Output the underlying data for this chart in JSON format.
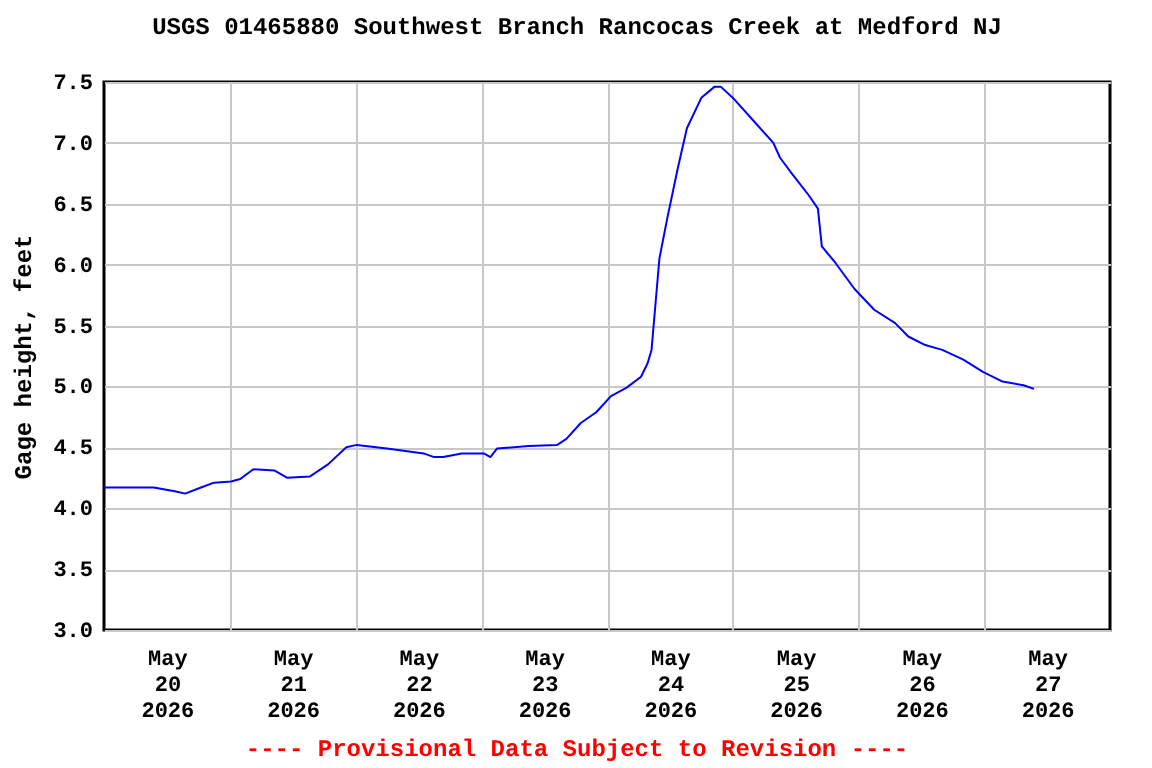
{
  "chart_data": {
    "type": "line",
    "title": "USGS 01465880 Southwest Branch Rancocas Creek at Medford NJ",
    "ylabel": "Gage height, feet",
    "annotations": [
      "---- Provisional Data Subject to Revision ----"
    ],
    "xlim": [
      "2026-05-20T00:00",
      "2026-05-28T00:00"
    ],
    "xticks": [
      {
        "value": "2026-05-20T12:00",
        "label": "May\n20\n2026"
      },
      {
        "value": "2026-05-21T00:00",
        "label": null
      },
      {
        "value": "2026-05-21T12:00",
        "label": "May\n21\n2026"
      },
      {
        "value": "2026-05-22T00:00",
        "label": null
      },
      {
        "value": "2026-05-22T12:00",
        "label": "May\n22\n2026"
      },
      {
        "value": "2026-05-23T00:00",
        "label": null
      },
      {
        "value": "2026-05-23T12:00",
        "label": "May\n23\n2026"
      },
      {
        "value": "2026-05-24T00:00",
        "label": null
      },
      {
        "value": "2026-05-24T12:00",
        "label": "May\n24\n2026"
      },
      {
        "value": "2026-05-25T00:00",
        "label": null
      },
      {
        "value": "2026-05-25T12:00",
        "label": "May\n25\n2026"
      },
      {
        "value": "2026-05-26T00:00",
        "label": null
      },
      {
        "value": "2026-05-26T12:00",
        "label": "May\n26\n2026"
      },
      {
        "value": "2026-05-27T00:00",
        "label": null
      },
      {
        "value": "2026-05-27T12:00",
        "label": "May\n27\n2026"
      }
    ],
    "ylim": [
      3.0,
      7.5
    ],
    "yticks": [
      {
        "value": 3.0,
        "label": "3.0"
      },
      {
        "value": 3.5,
        "label": "3.5"
      },
      {
        "value": 4.0,
        "label": "4.0"
      },
      {
        "value": 4.5,
        "label": "4.5"
      },
      {
        "value": 5.0,
        "label": "5.0"
      },
      {
        "value": 5.5,
        "label": "5.5"
      },
      {
        "value": 6.0,
        "label": "6.0"
      },
      {
        "value": 6.5,
        "label": "6.5"
      },
      {
        "value": 7.0,
        "label": "7.0"
      },
      {
        "value": 7.5,
        "label": "7.5"
      }
    ],
    "grid": true,
    "legend": false,
    "marker": "none",
    "line_style": "solid",
    "x": [
      "2026-05-20T00:00",
      "2026-05-20T09:30",
      "2026-05-20T13:30",
      "2026-05-20T15:30",
      "2026-05-20T18:30",
      "2026-05-20T21:00",
      "2026-05-21T00:15",
      "2026-05-21T02:00",
      "2026-05-21T04:30",
      "2026-05-21T08:30",
      "2026-05-21T11:00",
      "2026-05-21T15:15",
      "2026-05-21T18:45",
      "2026-05-21T22:15",
      "2026-05-22T00:15",
      "2026-05-22T06:00",
      "2026-05-22T13:00",
      "2026-05-22T15:00",
      "2026-05-22T16:45",
      "2026-05-22T20:15",
      "2026-05-23T00:30",
      "2026-05-23T01:45",
      "2026-05-23T03:00",
      "2026-05-23T09:00",
      "2026-05-23T14:30",
      "2026-05-23T16:15",
      "2026-05-23T19:00",
      "2026-05-23T22:00",
      "2026-05-24T00:45",
      "2026-05-24T03:45",
      "2026-05-24T06:30",
      "2026-05-24T07:45",
      "2026-05-24T08:30",
      "2026-05-24T09:00",
      "2026-05-24T10:00",
      "2026-05-24T11:30",
      "2026-05-24T13:30",
      "2026-05-24T15:15",
      "2026-05-24T18:00",
      "2026-05-24T20:30",
      "2026-05-24T21:45",
      "2026-05-25T00:15",
      "2026-05-25T04:00",
      "2026-05-25T07:45",
      "2026-05-25T09:00",
      "2026-05-25T11:15",
      "2026-05-25T14:30",
      "2026-05-25T16:15",
      "2026-05-25T17:00",
      "2026-05-25T19:30",
      "2026-05-25T23:15",
      "2026-05-26T03:00",
      "2026-05-26T07:00",
      "2026-05-26T09:30",
      "2026-05-26T12:45",
      "2026-05-26T16:00",
      "2026-05-26T20:00",
      "2026-05-26T23:45",
      "2026-05-27T03:30",
      "2026-05-27T07:30",
      "2026-05-27T09:30"
    ],
    "series": [
      {
        "color": "#0000ff",
        "values": [
          4.17,
          4.17,
          4.14,
          4.12,
          4.17,
          4.21,
          4.22,
          4.24,
          4.32,
          4.31,
          4.25,
          4.26,
          4.36,
          4.5,
          4.52,
          4.49,
          4.45,
          4.42,
          4.42,
          4.45,
          4.45,
          4.42,
          4.49,
          4.51,
          4.52,
          4.57,
          4.7,
          4.79,
          4.92,
          4.99,
          5.08,
          5.19,
          5.3,
          5.55,
          6.05,
          6.38,
          6.79,
          7.12,
          7.37,
          7.46,
          7.46,
          7.36,
          7.18,
          7.0,
          6.88,
          6.75,
          6.57,
          6.46,
          6.15,
          6.02,
          5.8,
          5.63,
          5.52,
          5.41,
          5.34,
          5.3,
          5.22,
          5.12,
          5.04,
          5.01,
          4.98
        ]
      }
    ]
  }
}
